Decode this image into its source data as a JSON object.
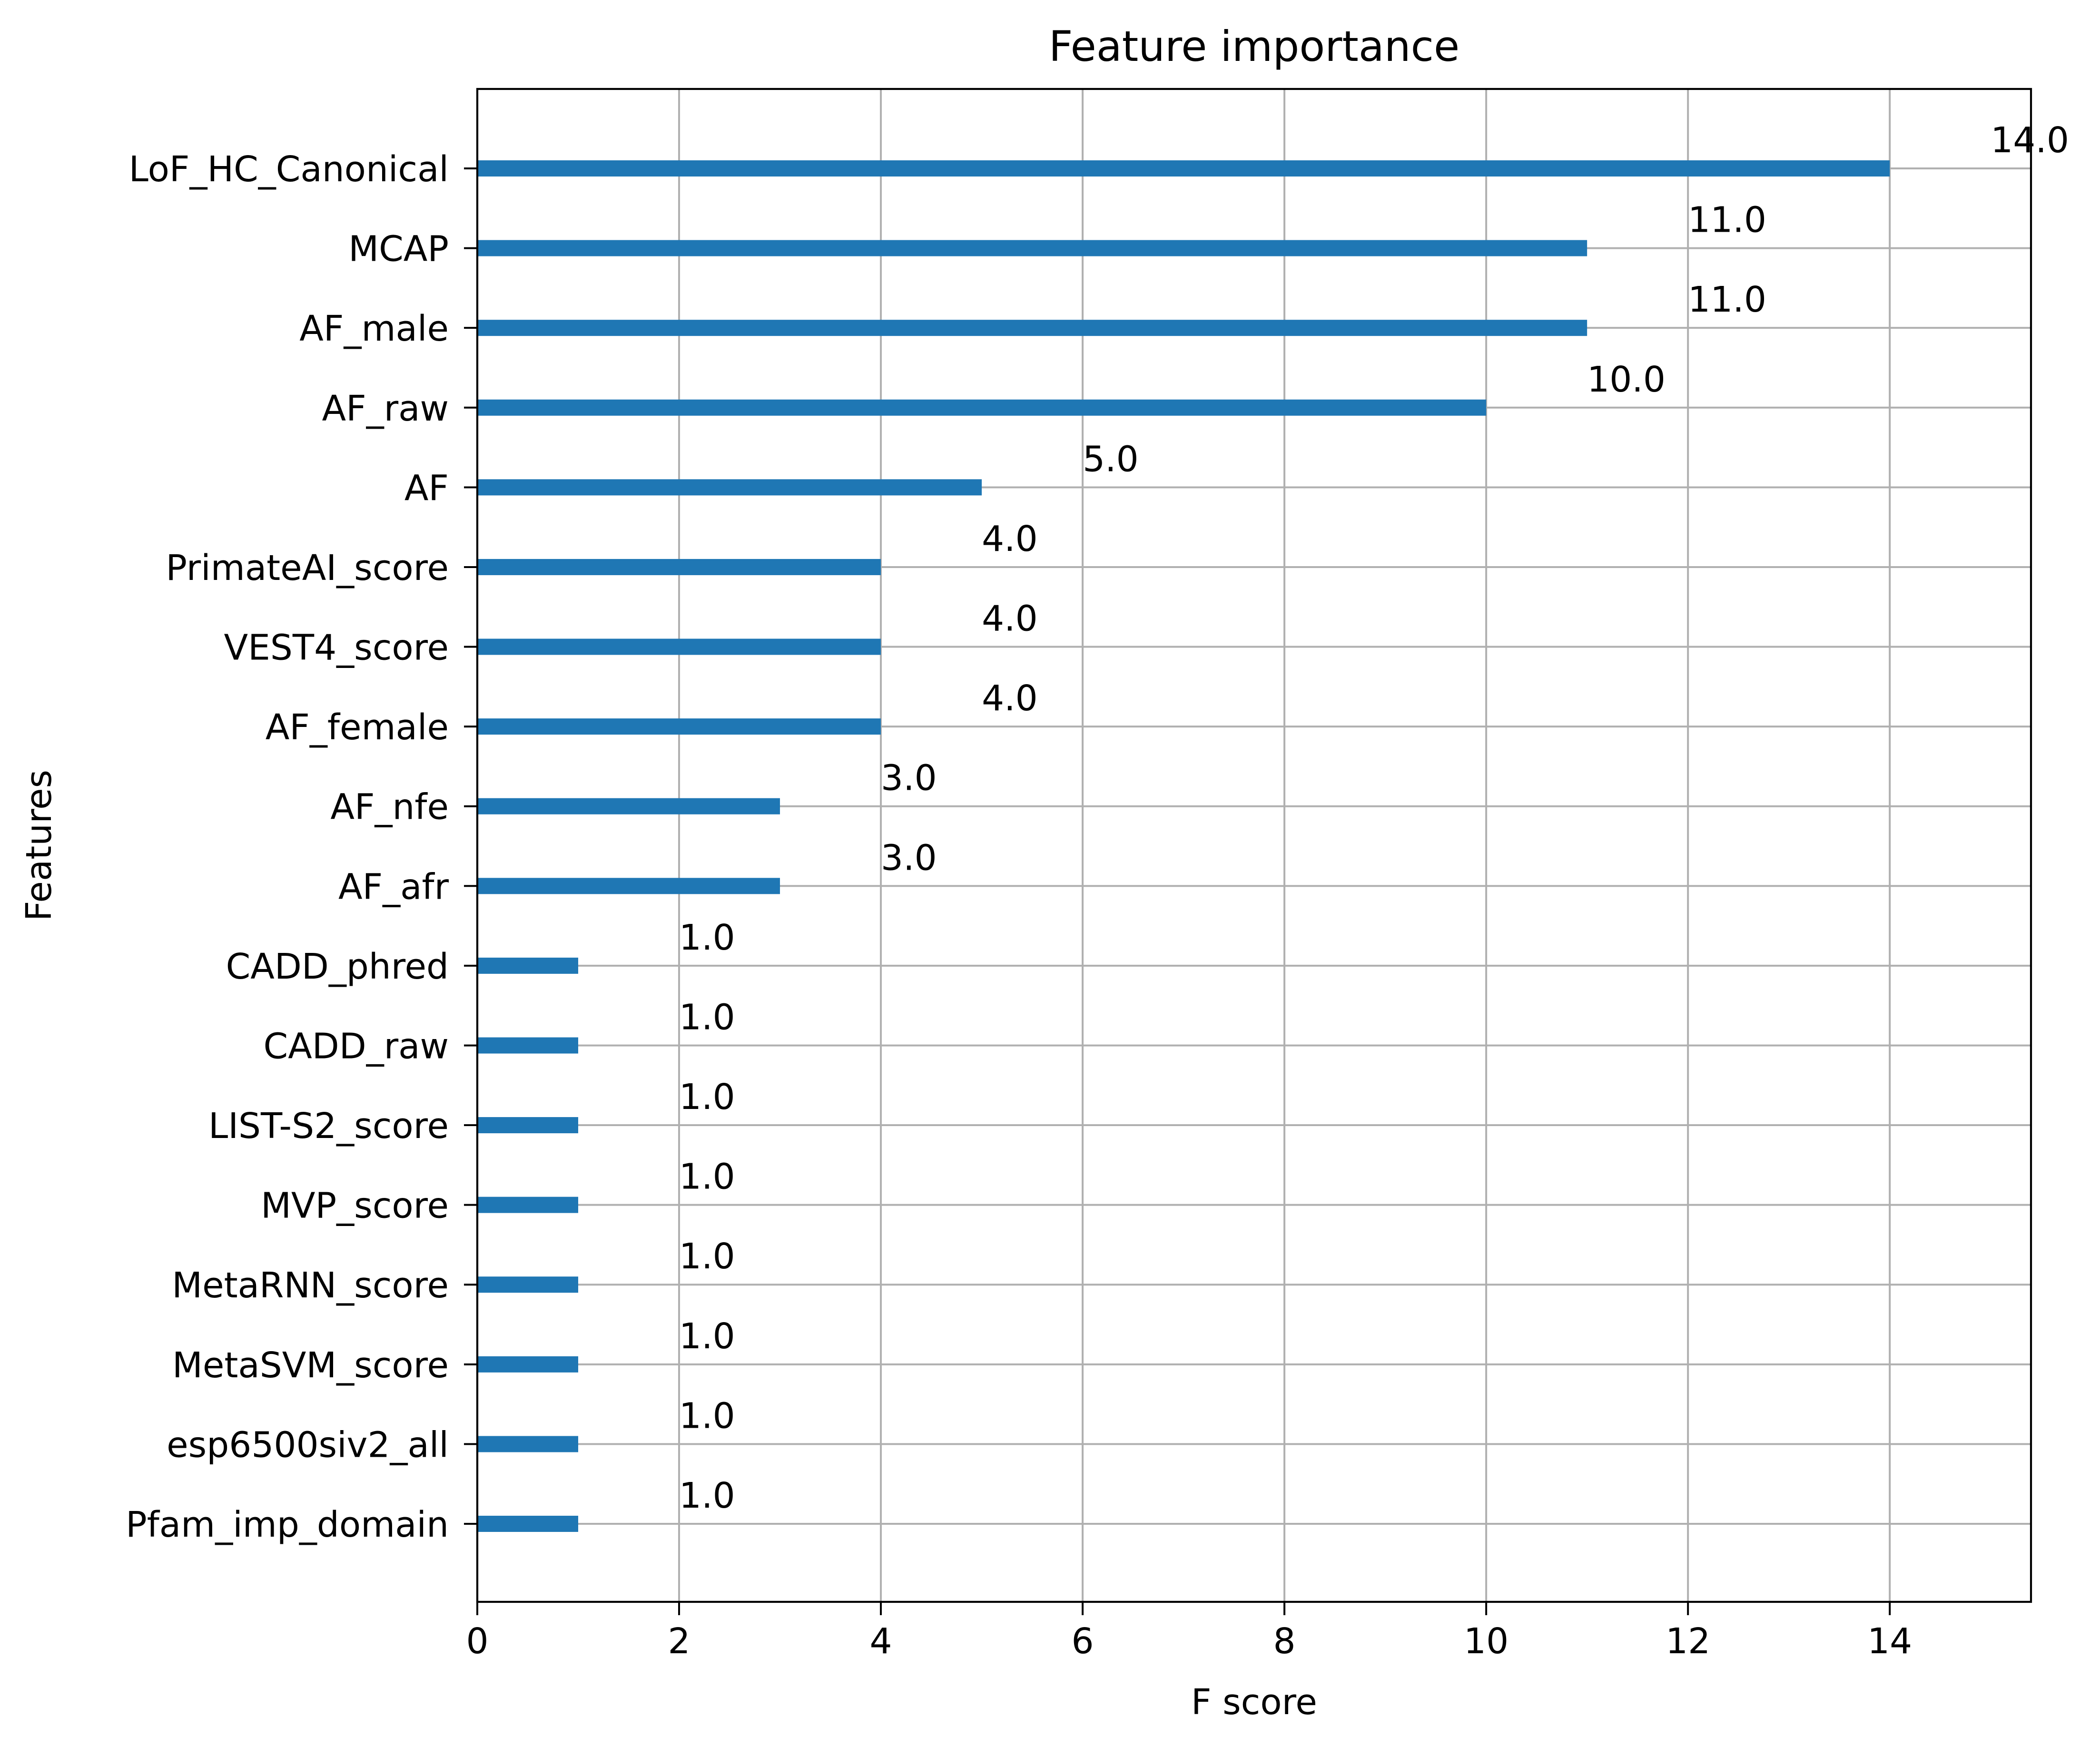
{
  "chart_data": {
    "type": "bar",
    "orientation": "horizontal",
    "title": "Feature importance",
    "xlabel": "F score",
    "ylabel": "Features",
    "xlim": [
      0,
      15.4
    ],
    "xticks": [
      0,
      2,
      4,
      6,
      8,
      10,
      12,
      14
    ],
    "grid": true,
    "bar_color": "#1f77b4",
    "categories": [
      "LoF_HC_Canonical",
      "MCAP",
      "AF_male",
      "AF_raw",
      "AF",
      "PrimateAI_score",
      "VEST4_score",
      "AF_female",
      "AF_nfe",
      "AF_afr",
      "CADD_phred",
      "CADD_raw",
      "LIST-S2_score",
      "MVP_score",
      "MetaRNN_score",
      "MetaSVM_score",
      "esp6500siv2_all",
      "Pfam_imp_domain"
    ],
    "values": [
      14,
      11,
      11,
      10,
      5,
      4,
      4,
      4,
      3,
      3,
      1,
      1,
      1,
      1,
      1,
      1,
      1,
      1
    ],
    "value_labels": [
      "14.0",
      "11.0",
      "11.0",
      "10.0",
      "5.0",
      "4.0",
      "4.0",
      "4.0",
      "3.0",
      "3.0",
      "1.0",
      "1.0",
      "1.0",
      "1.0",
      "1.0",
      "1.0",
      "1.0",
      "1.0"
    ]
  }
}
